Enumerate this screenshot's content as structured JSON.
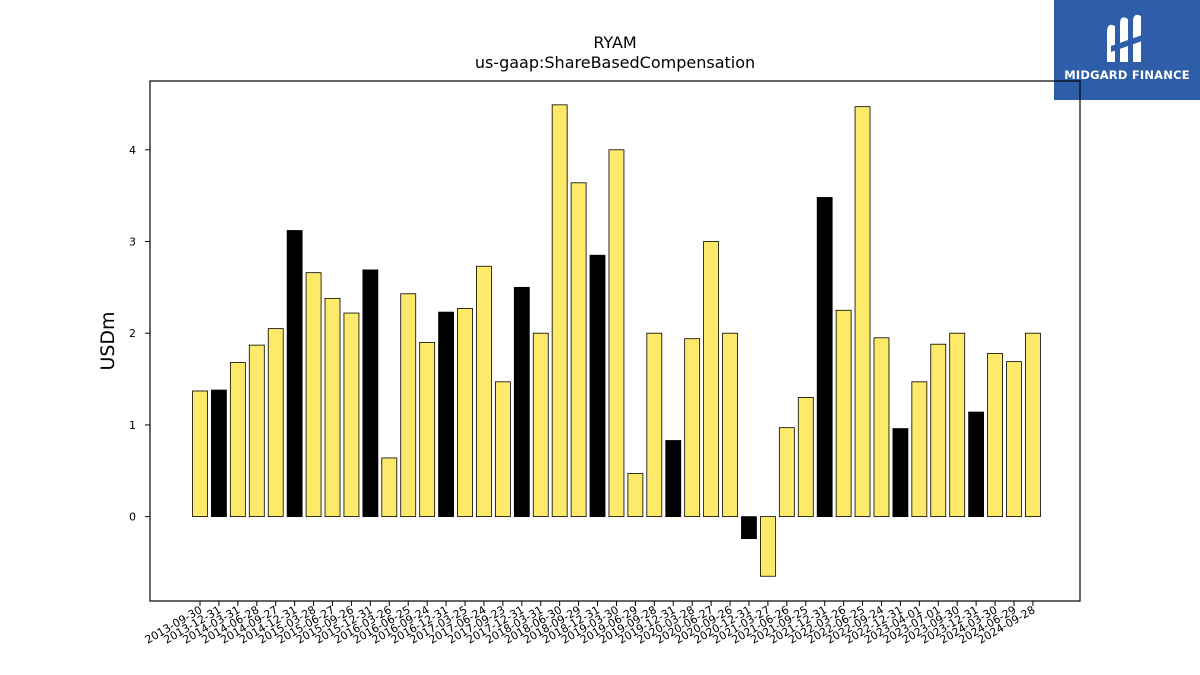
{
  "logo": {
    "text": "MIDGARD FINANCE",
    "icon": "midgard-logo-icon",
    "background": "#2f5ea8"
  },
  "chart_data": {
    "type": "bar",
    "title": "RYAM",
    "subtitle": "us-gaap:ShareBasedCompensation",
    "xlabel": "",
    "ylabel": "USDm",
    "ylim": [
      -0.92,
      4.75
    ],
    "yticks": [
      0,
      1,
      2,
      3,
      4
    ],
    "grid": false,
    "legend": "none",
    "colors": {
      "default": "#fde96a",
      "highlight": "#000000",
      "edge": "#000000"
    },
    "categories": [
      "2013-09-30",
      "2013-12-31",
      "2014-03-31",
      "2014-06-28",
      "2014-09-27",
      "2014-12-31",
      "2015-03-28",
      "2015-06-27",
      "2015-09-26",
      "2015-12-31",
      "2016-03-26",
      "2016-06-25",
      "2016-09-24",
      "2016-12-31",
      "2017-03-25",
      "2017-06-24",
      "2017-09-23",
      "2017-12-31",
      "2018-03-31",
      "2018-06-30",
      "2018-09-29",
      "2018-12-31",
      "2019-03-30",
      "2019-06-29",
      "2019-09-28",
      "2019-12-31",
      "2020-03-28",
      "2020-06-27",
      "2020-09-26",
      "2020-12-31",
      "2021-03-27",
      "2021-06-26",
      "2021-09-25",
      "2021-12-31",
      "2022-03-26",
      "2022-06-25",
      "2022-09-24",
      "2022-12-31",
      "2023-04-01",
      "2023-07-01",
      "2023-09-30",
      "2023-12-31",
      "2024-03-30",
      "2024-06-29",
      "2024-09-28"
    ],
    "values": [
      1.37,
      1.38,
      1.68,
      1.87,
      2.05,
      3.12,
      2.66,
      2.38,
      2.22,
      2.69,
      0.64,
      2.43,
      1.9,
      2.23,
      2.27,
      2.73,
      1.47,
      2.5,
      2.0,
      4.49,
      3.64,
      2.85,
      4.0,
      0.47,
      2.0,
      0.83,
      1.94,
      3.0,
      2.0,
      -0.24,
      -0.65,
      0.97,
      1.3,
      3.48,
      2.25,
      4.47,
      1.95,
      0.96,
      1.47,
      1.88,
      2.0,
      1.14,
      1.78,
      1.69,
      2.0
    ],
    "highlighted": [
      false,
      true,
      false,
      false,
      false,
      true,
      false,
      false,
      false,
      true,
      false,
      false,
      false,
      true,
      false,
      false,
      false,
      true,
      false,
      false,
      false,
      true,
      false,
      false,
      false,
      true,
      false,
      false,
      false,
      true,
      false,
      false,
      false,
      true,
      false,
      false,
      false,
      true,
      false,
      false,
      false,
      true,
      false,
      false,
      false
    ]
  }
}
